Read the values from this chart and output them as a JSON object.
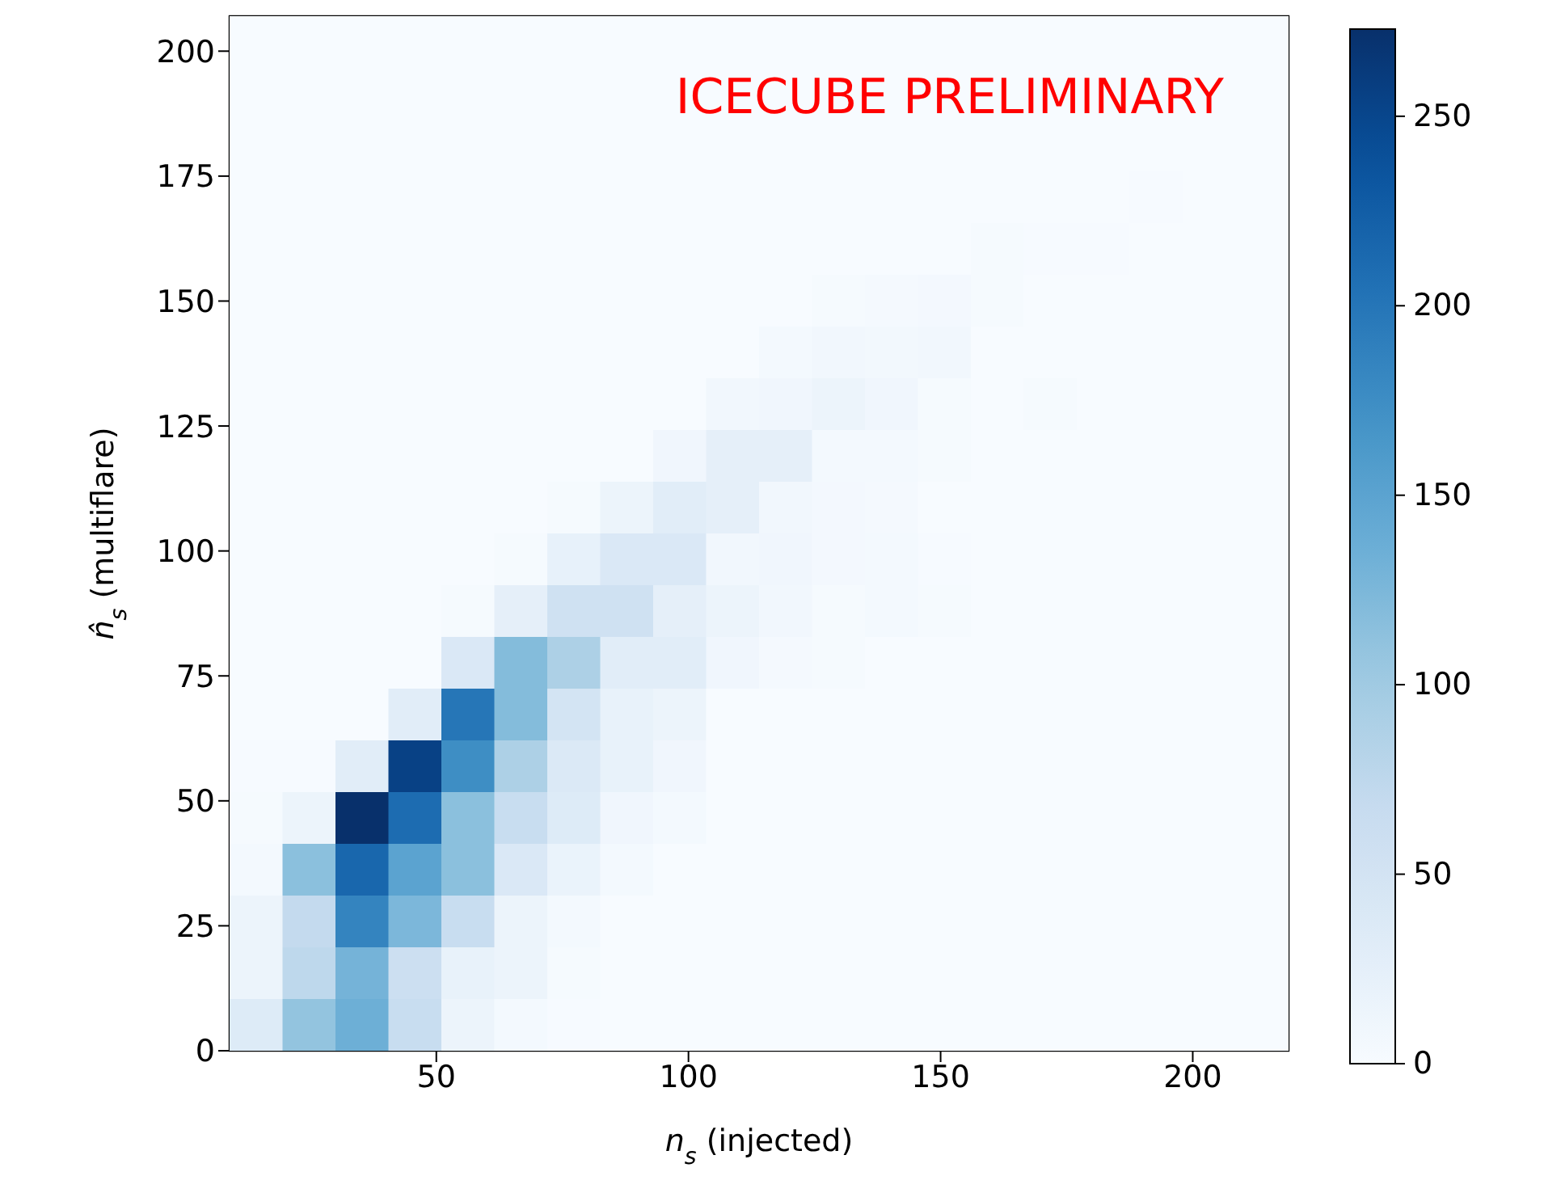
{
  "chart_data": {
    "type": "heatmap",
    "xlabel": "n$_{s}$ (injected)",
    "ylabel": "n̂$_{s}$ (multiflare)",
    "annotations": [
      "ICECUBE PRELIMINARY"
    ],
    "xlim": [
      9,
      219
    ],
    "xticks": [
      50,
      100,
      150,
      200
    ],
    "ylim": [
      0,
      207
    ],
    "yticks": [
      0,
      25,
      50,
      75,
      100,
      125,
      150,
      175,
      200
    ],
    "clim": [
      0,
      273
    ],
    "cticks": [
      0,
      50,
      100,
      150,
      200,
      250
    ],
    "cells": [
      [
        0,
        0,
        0,
        0,
        0,
        0,
        0,
        0,
        0,
        0,
        0,
        0,
        0,
        0,
        0,
        0,
        0,
        0,
        0,
        0
      ],
      [
        0,
        0,
        0,
        0,
        0,
        0,
        0,
        0,
        0,
        0,
        0,
        0,
        0,
        0,
        0,
        0,
        0,
        0,
        0,
        0
      ],
      [
        0,
        0,
        0,
        0,
        0,
        0,
        0,
        0,
        0,
        0,
        0,
        0,
        0,
        0,
        0,
        0,
        0,
        0,
        0,
        0
      ],
      [
        0,
        0,
        0,
        0,
        0,
        0,
        0,
        0,
        0,
        0,
        0,
        0,
        0,
        0,
        0,
        0,
        0,
        2,
        0,
        0
      ],
      [
        0,
        0,
        0,
        0,
        0,
        0,
        0,
        0,
        0,
        0,
        0,
        0,
        0,
        0,
        3,
        2,
        2,
        0,
        0,
        0
      ],
      [
        0,
        0,
        0,
        0,
        0,
        0,
        0,
        0,
        0,
        0,
        0,
        3,
        4,
        6,
        3,
        0,
        0,
        0,
        0,
        0
      ],
      [
        0,
        0,
        0,
        0,
        0,
        0,
        0,
        0,
        0,
        0,
        5,
        8,
        7,
        8,
        0,
        0,
        0,
        0,
        0,
        0
      ],
      [
        0,
        0,
        0,
        0,
        0,
        0,
        0,
        0,
        0,
        8,
        10,
        15,
        10,
        3,
        0,
        3,
        0,
        0,
        0,
        0
      ],
      [
        0,
        0,
        0,
        0,
        0,
        0,
        0,
        0,
        10,
        25,
        25,
        5,
        5,
        3,
        0,
        0,
        0,
        0,
        0,
        0
      ],
      [
        0,
        0,
        0,
        0,
        0,
        0,
        3,
        15,
        30,
        25,
        8,
        6,
        4,
        0,
        0,
        0,
        0,
        0,
        0,
        0
      ],
      [
        0,
        0,
        0,
        0,
        0,
        3,
        22,
        40,
        40,
        8,
        10,
        6,
        5,
        2,
        0,
        0,
        0,
        0,
        0,
        0
      ],
      [
        0,
        0,
        0,
        0,
        3,
        25,
        55,
        55,
        25,
        15,
        8,
        3,
        5,
        3,
        0,
        0,
        0,
        0,
        0,
        0
      ],
      [
        0,
        0,
        0,
        0,
        40,
        120,
        90,
        30,
        30,
        10,
        4,
        3,
        0,
        0,
        0,
        0,
        0,
        0,
        0,
        0
      ],
      [
        0,
        0,
        0,
        30,
        200,
        120,
        50,
        20,
        15,
        0,
        0,
        0,
        0,
        0,
        0,
        0,
        0,
        0,
        0,
        0
      ],
      [
        2,
        2,
        30,
        255,
        175,
        90,
        38,
        20,
        10,
        0,
        0,
        0,
        0,
        0,
        0,
        0,
        0,
        0,
        0,
        0
      ],
      [
        3,
        15,
        273,
        210,
        115,
        65,
        35,
        10,
        5,
        0,
        0,
        0,
        0,
        0,
        0,
        0,
        0,
        0,
        0,
        0
      ],
      [
        5,
        115,
        215,
        150,
        115,
        40,
        18,
        5,
        0,
        0,
        0,
        0,
        0,
        0,
        0,
        0,
        0,
        0,
        0,
        0
      ],
      [
        15,
        70,
        185,
        125,
        65,
        15,
        5,
        0,
        0,
        0,
        0,
        0,
        0,
        0,
        0,
        0,
        0,
        0,
        0,
        0
      ],
      [
        15,
        75,
        130,
        60,
        20,
        15,
        3,
        0,
        0,
        0,
        0,
        0,
        0,
        0,
        0,
        0,
        0,
        0,
        0,
        0
      ],
      [
        35,
        110,
        135,
        65,
        15,
        5,
        2,
        0,
        0,
        0,
        0,
        0,
        0,
        0,
        0,
        0,
        0,
        0,
        0,
        0
      ]
    ]
  }
}
